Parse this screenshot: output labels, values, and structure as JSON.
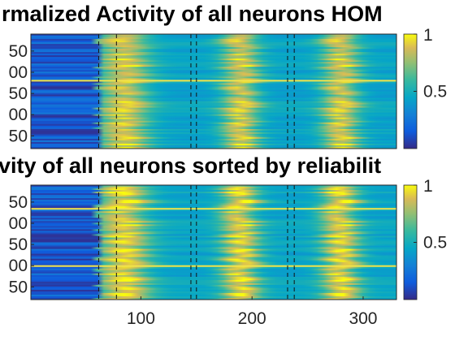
{
  "chart_data": [
    {
      "type": "heatmap",
      "title": "rmalized Activity of all neurons HOM",
      "xlim": [
        1,
        330
      ],
      "ylim_partial_ticklabels": [
        "50",
        "00",
        "50",
        "00",
        "50"
      ],
      "ytick_labels": [
        "50",
        "00",
        "50",
        "00",
        "50"
      ],
      "xtick_labels": [],
      "dashed_vlines_x": [
        62,
        78,
        145,
        150,
        232,
        238
      ],
      "colorbar": {
        "ticks": [
          {
            "value": 1,
            "label": "1"
          },
          {
            "value": 0.5,
            "label": "0.5"
          }
        ],
        "range": [
          0,
          1
        ],
        "colormap": "parula"
      },
      "activity_peaks_x": [
        85,
        190,
        280
      ],
      "onset_x": 62
    },
    {
      "type": "heatmap",
      "title": "vity of all neurons sorted by reliabilit",
      "xlim": [
        1,
        330
      ],
      "ytick_labels": [
        "50",
        "00",
        "50",
        "00",
        "50"
      ],
      "xtick_labels": [
        "100",
        "200",
        "300"
      ],
      "xtick_values": [
        100,
        200,
        300
      ],
      "dashed_vlines_x": [
        62,
        78,
        145,
        150,
        232,
        238
      ],
      "colorbar": {
        "ticks": [
          {
            "value": 1,
            "label": "1"
          },
          {
            "value": 0.5,
            "label": "0.5"
          }
        ],
        "range": [
          0,
          1
        ],
        "colormap": "parula"
      },
      "activity_peaks_x": [
        85,
        190,
        280
      ],
      "onset_x": 62
    }
  ]
}
